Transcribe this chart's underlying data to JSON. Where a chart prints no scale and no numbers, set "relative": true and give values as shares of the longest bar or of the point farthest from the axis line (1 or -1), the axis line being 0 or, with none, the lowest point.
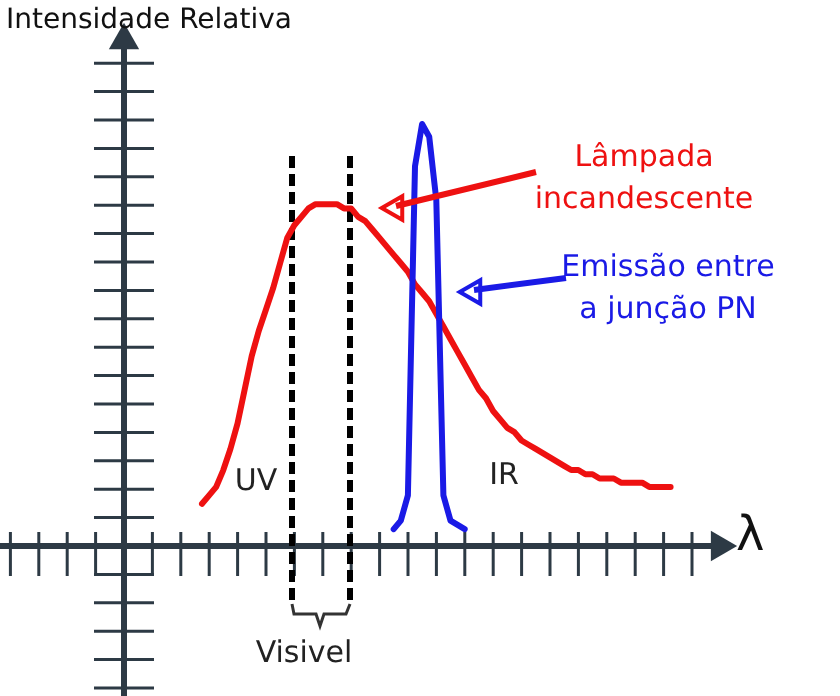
{
  "chart_data": {
    "type": "line",
    "relative": true,
    "ylabel": "Intensidade Relativa",
    "xlabel": "λ",
    "categories": [
      null,
      null,
      null,
      null,
      null,
      null,
      null,
      null,
      null,
      null,
      null,
      null,
      null,
      null,
      null,
      null,
      null,
      null,
      null,
      null,
      null,
      null,
      null,
      null,
      null,
      null,
      null,
      null,
      null,
      null,
      null,
      null,
      null,
      null,
      null,
      null,
      null,
      null,
      null,
      null,
      null,
      null,
      null,
      null,
      null,
      null,
      null,
      null,
      null,
      null,
      null,
      null,
      null,
      null,
      null,
      null,
      null,
      null,
      null,
      null,
      null,
      null,
      null,
      null,
      null,
      null,
      null
    ],
    "grid": false,
    "marker": "none",
    "line_style": "solid",
    "series": [
      {
        "name": "Lâmpada incandescente",
        "color": "#ee1111",
        "values": [
          0.1,
          0.12,
          0.14,
          0.18,
          0.23,
          0.29,
          0.37,
          0.45,
          0.51,
          0.56,
          0.61,
          0.67,
          0.73,
          0.76,
          0.78,
          0.8,
          0.81,
          0.81,
          0.81,
          0.81,
          0.8,
          0.8,
          0.78,
          0.77,
          0.75,
          0.73,
          0.71,
          0.69,
          0.67,
          0.65,
          0.62,
          0.6,
          0.58,
          0.55,
          0.52,
          0.49,
          0.46,
          0.43,
          0.4,
          0.37,
          0.35,
          0.32,
          0.3,
          0.28,
          0.27,
          0.25,
          0.24,
          0.23,
          0.22,
          0.21,
          0.2,
          0.19,
          0.18,
          0.18,
          0.17,
          0.17,
          0.16,
          0.16,
          0.16,
          0.15,
          0.15,
          0.15,
          0.15,
          0.14,
          0.14,
          0.14,
          0.14
        ]
      },
      {
        "name": "Emissão entre a junção PN",
        "color": "#1a1ae6",
        "values": [
          null,
          null,
          null,
          null,
          null,
          null,
          null,
          null,
          null,
          null,
          null,
          null,
          null,
          null,
          null,
          null,
          null,
          null,
          null,
          null,
          null,
          null,
          null,
          null,
          null,
          null,
          null,
          0.04,
          0.06,
          0.12,
          0.9,
          1.0,
          0.97,
          0.82,
          0.12,
          0.06,
          0.05,
          0.04,
          null,
          null,
          null,
          null,
          null,
          null,
          null,
          null,
          null,
          null,
          null,
          null,
          null,
          null,
          null,
          null,
          null,
          null,
          null,
          null,
          null,
          null,
          null,
          null,
          null,
          null,
          null,
          null,
          null
        ]
      }
    ],
    "annotations": [
      "UV",
      "IR",
      "Visivel"
    ]
  }
}
